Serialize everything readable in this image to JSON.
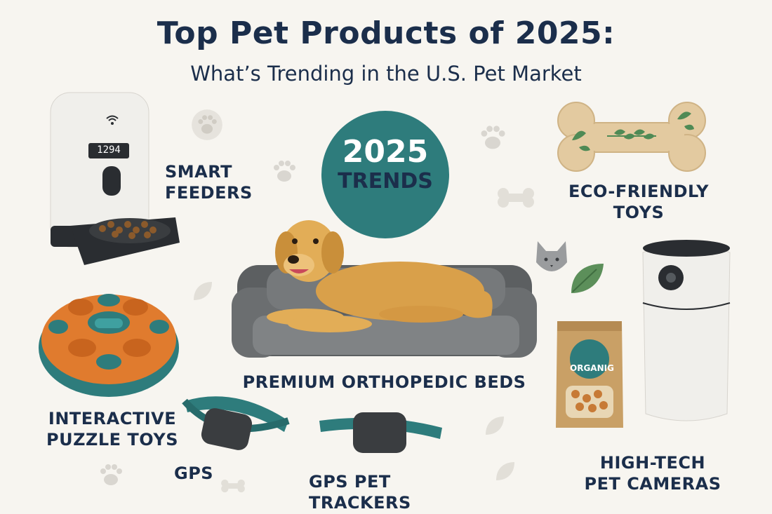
{
  "header": {
    "title": "Top Pet Products of 2025:",
    "subtitle": "What’s Trending in the U.S. Pet Market"
  },
  "badge": {
    "year": "2025",
    "text": "TRENDS"
  },
  "feeder": {
    "display": "1294"
  },
  "treat_bag": {
    "label": "ORGANIG"
  },
  "labels": {
    "smart_feeders": [
      "SMART",
      "FEEDERS"
    ],
    "eco_toys": [
      "ECO-FRIENDLY",
      "TOYS"
    ],
    "beds": "PREMIUM ORTHOPEDIC BEDS",
    "puzzle_toys": [
      "INTERACTIVE",
      "PUZZLE TOYS"
    ],
    "gps_small": "GPS",
    "gps_trackers": "GPS PET TRACKERS",
    "pet_cameras": [
      "HIGH-TECH",
      "PET CAMERAS"
    ]
  },
  "colors": {
    "navy": "#1b2e4b",
    "teal": "#2e7c7c",
    "orange": "#e07b2e",
    "bed_gray": "#6b6e70",
    "background": "#f7f5f0"
  },
  "icons": [
    "wifi-icon",
    "paw-print-icon",
    "leaf-icon",
    "cat-head-icon"
  ]
}
